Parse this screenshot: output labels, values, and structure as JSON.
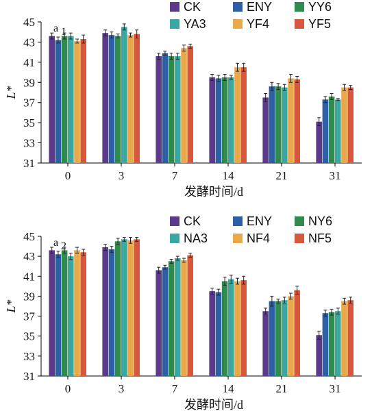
{
  "chart_data": [
    {
      "type": "bar",
      "panel_label": "a",
      "panel_sub": "1",
      "ylabel": "L*",
      "xlabel": "发酵时间/d",
      "ylim": [
        31,
        45
      ],
      "yticks": [
        "31",
        "33",
        "35",
        "37",
        "39",
        "41",
        "43",
        "45"
      ],
      "categories": [
        "0",
        "3",
        "7",
        "14",
        "21",
        "31"
      ],
      "legend_position": "top-right",
      "series": [
        {
          "name": "CK",
          "color": "#5b3a8c",
          "values": [
            43.6,
            43.9,
            41.6,
            39.5,
            37.5,
            35.1
          ],
          "errors": [
            0.3,
            0.3,
            0.3,
            0.3,
            0.4,
            0.4
          ]
        },
        {
          "name": "ENY",
          "color": "#2c5fa5",
          "values": [
            43.2,
            43.7,
            41.9,
            39.4,
            38.6,
            37.3
          ],
          "errors": [
            0.3,
            0.3,
            0.2,
            0.3,
            0.4,
            0.3
          ]
        },
        {
          "name": "YY6",
          "color": "#2e8b4d",
          "values": [
            43.6,
            43.6,
            41.6,
            39.5,
            38.6,
            37.6
          ],
          "errors": [
            0.3,
            0.2,
            0.3,
            0.3,
            0.3,
            0.3
          ]
        },
        {
          "name": "YA3",
          "color": "#3ba7a1",
          "values": [
            43.6,
            44.5,
            41.6,
            39.5,
            38.5,
            37.3
          ],
          "errors": [
            0.3,
            0.3,
            0.3,
            0.2,
            0.3,
            0.1
          ]
        },
        {
          "name": "YF4",
          "color": "#e9a84a",
          "values": [
            43.1,
            43.7,
            42.4,
            40.5,
            39.4,
            38.5
          ],
          "errors": [
            0.2,
            0.2,
            0.3,
            0.4,
            0.4,
            0.3
          ]
        },
        {
          "name": "YF5",
          "color": "#d7573c",
          "values": [
            43.3,
            43.8,
            42.6,
            40.5,
            39.3,
            38.5
          ],
          "errors": [
            0.4,
            0.4,
            0.2,
            0.4,
            0.3,
            0.2
          ]
        }
      ]
    },
    {
      "type": "bar",
      "panel_label": "a",
      "panel_sub": "2",
      "ylabel": "L*",
      "xlabel": "发酵时间/d",
      "ylim": [
        31,
        45
      ],
      "yticks": [
        "31",
        "33",
        "35",
        "37",
        "39",
        "41",
        "43",
        "45"
      ],
      "categories": [
        "0",
        "3",
        "7",
        "14",
        "21",
        "31"
      ],
      "legend_position": "top-right",
      "series": [
        {
          "name": "CK",
          "color": "#5b3a8c",
          "values": [
            43.6,
            43.9,
            41.6,
            39.5,
            37.5,
            35.1
          ],
          "errors": [
            0.3,
            0.3,
            0.3,
            0.3,
            0.3,
            0.4
          ]
        },
        {
          "name": "ENY",
          "color": "#2c5fa5",
          "values": [
            43.2,
            43.7,
            41.9,
            39.4,
            38.5,
            37.3
          ],
          "errors": [
            0.3,
            0.3,
            0.2,
            0.3,
            0.5,
            0.3
          ]
        },
        {
          "name": "NY6",
          "color": "#2e8b4d",
          "values": [
            43.6,
            44.5,
            42.5,
            40.5,
            38.5,
            37.4
          ],
          "errors": [
            0.3,
            0.3,
            0.2,
            0.4,
            0.2,
            0.3
          ]
        },
        {
          "name": "NA3",
          "color": "#3ba7a1",
          "values": [
            43.0,
            44.7,
            42.8,
            40.7,
            38.6,
            37.5
          ],
          "errors": [
            0.3,
            0.2,
            0.2,
            0.4,
            0.3,
            0.3
          ]
        },
        {
          "name": "NF4",
          "color": "#e9a84a",
          "values": [
            43.6,
            44.6,
            42.6,
            40.5,
            39.0,
            38.5
          ],
          "errors": [
            0.3,
            0.3,
            0.2,
            0.3,
            0.3,
            0.3
          ]
        },
        {
          "name": "NF5",
          "color": "#d7573c",
          "values": [
            43.4,
            44.7,
            43.1,
            40.6,
            39.6,
            38.6
          ],
          "errors": [
            0.3,
            0.2,
            0.2,
            0.4,
            0.4,
            0.3
          ]
        }
      ]
    }
  ]
}
